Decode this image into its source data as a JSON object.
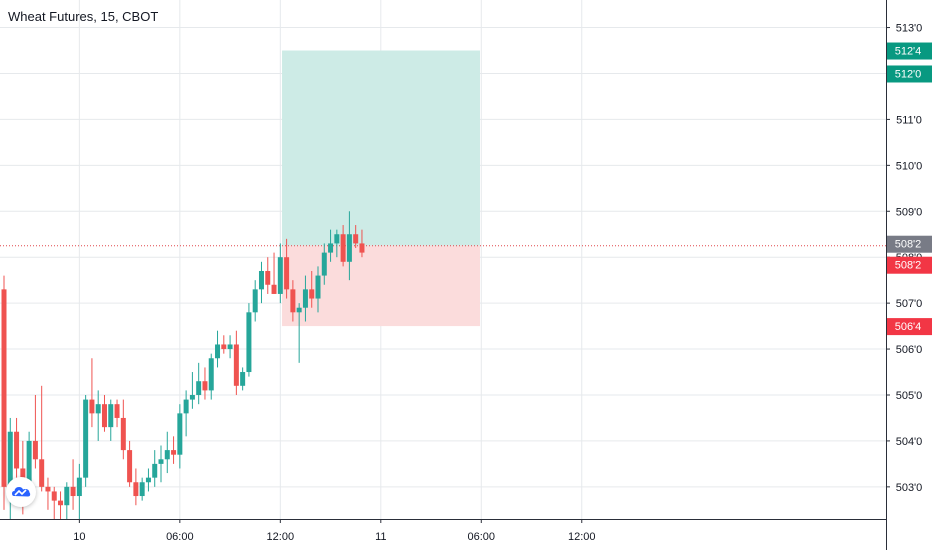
{
  "header": {
    "symbol_title": "Wheat Futures, 15, CBOT"
  },
  "colors": {
    "up": "#26a69a",
    "down": "#ef5350",
    "grid": "#e6e9ec",
    "target_zone": "#cdebe6",
    "stop_zone": "#fbdcdc",
    "current_price_tag": "#787b86",
    "label_green": "#089981",
    "label_red": "#f23645"
  },
  "chart_data": {
    "type": "candlestick",
    "title": "Wheat Futures, 15, CBOT",
    "y_axis": {
      "ticks": [
        "503'0",
        "504'0",
        "505'0",
        "506'0",
        "507'0",
        "508'0",
        "509'0",
        "510'0",
        "511'0",
        "512'0",
        "513'0"
      ],
      "tick_values": [
        503,
        504,
        505,
        506,
        507,
        508,
        509,
        510,
        511,
        512,
        513
      ],
      "range": [
        502.3,
        513.6
      ],
      "position": "right"
    },
    "x_axis": {
      "ticks": [
        "10",
        "06:00",
        "12:00",
        "11",
        "06:00",
        "12:00"
      ],
      "tick_bars": [
        12,
        28,
        44,
        60,
        76,
        92
      ]
    },
    "grid": true,
    "candles": [
      [
        507.3,
        507.6,
        502.5,
        503.0
      ],
      [
        503.0,
        504.5,
        502.3,
        504.2
      ],
      [
        504.2,
        504.5,
        503.2,
        503.4
      ],
      [
        503.4,
        504.0,
        502.4,
        503.1
      ],
      [
        503.1,
        504.2,
        502.9,
        504.0
      ],
      [
        504.0,
        505.0,
        503.4,
        503.6
      ],
      [
        503.6,
        505.2,
        502.9,
        503.0
      ],
      [
        503.0,
        503.2,
        502.5,
        502.9
      ],
      [
        502.9,
        503.0,
        502.3,
        502.7
      ],
      [
        502.7,
        502.9,
        502.3,
        502.6
      ],
      [
        502.6,
        503.1,
        502.2,
        503.0
      ],
      [
        503.0,
        503.6,
        502.5,
        502.8
      ],
      [
        502.8,
        503.5,
        502.3,
        503.2
      ],
      [
        503.2,
        505.0,
        503.0,
        504.9
      ],
      [
        504.9,
        505.8,
        504.3,
        504.6
      ],
      [
        504.6,
        505.1,
        504.0,
        504.8
      ],
      [
        504.8,
        505.0,
        504.2,
        504.3
      ],
      [
        504.3,
        504.9,
        504.0,
        504.8
      ],
      [
        504.8,
        504.9,
        504.3,
        504.5
      ],
      [
        504.5,
        504.9,
        503.6,
        503.8
      ],
      [
        503.8,
        504.0,
        503.0,
        503.1
      ],
      [
        503.1,
        503.4,
        502.6,
        502.8
      ],
      [
        502.8,
        503.2,
        502.7,
        503.1
      ],
      [
        503.1,
        503.4,
        502.9,
        503.2
      ],
      [
        503.2,
        503.8,
        503.0,
        503.5
      ],
      [
        503.5,
        503.9,
        503.1,
        503.6
      ],
      [
        503.6,
        504.2,
        503.3,
        503.8
      ],
      [
        503.8,
        504.1,
        503.5,
        503.7
      ],
      [
        503.7,
        504.8,
        503.4,
        504.6
      ],
      [
        504.6,
        505.1,
        504.1,
        504.9
      ],
      [
        504.9,
        505.5,
        504.7,
        505.0
      ],
      [
        505.0,
        505.7,
        504.8,
        505.3
      ],
      [
        505.3,
        505.6,
        504.9,
        505.1
      ],
      [
        505.1,
        505.9,
        504.9,
        505.8
      ],
      [
        505.8,
        506.4,
        505.6,
        506.1
      ],
      [
        506.1,
        506.3,
        505.9,
        506.0
      ],
      [
        506.0,
        506.3,
        505.8,
        506.1
      ],
      [
        506.1,
        506.4,
        505.0,
        505.2
      ],
      [
        505.2,
        505.6,
        505.1,
        505.5
      ],
      [
        505.5,
        507.0,
        505.4,
        506.8
      ],
      [
        506.8,
        507.5,
        506.6,
        507.3
      ],
      [
        507.3,
        507.9,
        507.0,
        507.7
      ],
      [
        507.7,
        508.0,
        507.2,
        507.4
      ],
      [
        507.4,
        508.1,
        507.2,
        507.2
      ],
      [
        507.2,
        508.3,
        507.0,
        508.0
      ],
      [
        508.0,
        508.4,
        507.1,
        507.3
      ],
      [
        507.3,
        507.5,
        506.6,
        506.8
      ],
      [
        506.8,
        507.0,
        505.7,
        506.9
      ],
      [
        506.9,
        507.6,
        506.6,
        507.3
      ],
      [
        507.3,
        507.7,
        506.9,
        507.1
      ],
      [
        507.1,
        507.8,
        506.8,
        507.6
      ],
      [
        507.6,
        508.3,
        507.4,
        508.1
      ],
      [
        508.1,
        508.6,
        507.9,
        508.3
      ],
      [
        508.3,
        508.6,
        508.0,
        508.5
      ],
      [
        508.5,
        508.7,
        507.8,
        507.9
      ],
      [
        507.9,
        509.0,
        507.5,
        508.5
      ],
      [
        508.5,
        508.7,
        508.2,
        508.3
      ],
      [
        508.3,
        508.6,
        508.0,
        508.1
      ]
    ],
    "position_tool": {
      "entry": 508.25,
      "target": 512.5,
      "stop": 506.5,
      "start_bar": 43,
      "end_bar": 75
    },
    "price_labels": [
      {
        "text": "512'4",
        "value": 512.5,
        "kind": "target"
      },
      {
        "text": "512'0",
        "value": 512.0,
        "kind": "target"
      },
      {
        "text": "508'2",
        "value": 508.25,
        "kind": "current"
      },
      {
        "text": "508'2",
        "value": 508.25,
        "kind": "stop_side"
      },
      {
        "text": "506'4",
        "value": 506.5,
        "kind": "stop"
      }
    ]
  }
}
